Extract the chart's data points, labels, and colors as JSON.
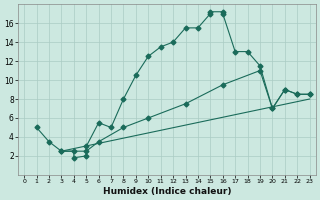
{
  "xlabel": "Humidex (Indice chaleur)",
  "background_color": "#cce8e0",
  "grid_color": "#aaccc4",
  "line_color": "#1a6b5a",
  "xlim": [
    -0.5,
    23.5
  ],
  "ylim": [
    0,
    18
  ],
  "xticks": [
    0,
    1,
    2,
    3,
    4,
    5,
    6,
    7,
    8,
    9,
    10,
    11,
    12,
    13,
    14,
    15,
    16,
    17,
    18,
    19,
    20,
    21,
    22,
    23
  ],
  "yticks": [
    2,
    4,
    6,
    8,
    10,
    12,
    14,
    16
  ],
  "curve1_x": [
    1,
    2,
    3,
    4,
    4,
    5,
    5,
    6,
    7,
    8,
    9,
    10,
    11,
    12,
    13,
    14,
    15,
    15,
    16,
    16,
    17,
    18,
    19,
    20,
    21,
    22,
    23
  ],
  "curve1_y": [
    5,
    3.5,
    2.5,
    2.5,
    1.8,
    2.0,
    3.0,
    5.5,
    5.0,
    8.0,
    10.5,
    12.5,
    13.5,
    14.0,
    15.5,
    15.5,
    17.0,
    17.2,
    17.2,
    17.0,
    13.0,
    13.0,
    11.5,
    7.0,
    9.0,
    8.5,
    8.5
  ],
  "curve2_x": [
    3,
    5,
    6,
    8,
    10,
    13,
    16,
    19,
    20,
    21,
    22,
    23
  ],
  "curve2_y": [
    2.5,
    2.5,
    3.5,
    5.0,
    6.0,
    7.5,
    9.5,
    11.0,
    7.0,
    9.0,
    8.5,
    8.5
  ],
  "curve3_x": [
    3,
    23
  ],
  "curve3_y": [
    2.5,
    8.0
  ]
}
